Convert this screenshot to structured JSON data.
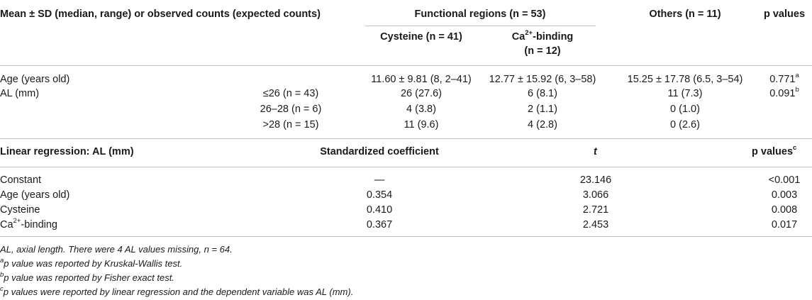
{
  "table1": {
    "header_desc": "Mean ± SD (median, range) or observed counts (expected counts)",
    "header_functional": "Functional regions (n = 53)",
    "header_cysteine": "Cysteine (n = 41)",
    "header_ca_pre": "Ca",
    "header_ca_sup": "2+",
    "header_ca_post": "-binding",
    "header_ca_n": "(n = 12)",
    "header_others": "Others (n = 11)",
    "header_p": "p values",
    "rows": [
      {
        "label": "Age (years old)",
        "sub": "",
        "cys": "11.60 ± 9.81 (8, 2–41)",
        "ca": "12.77 ± 15.92 (6, 3–58)",
        "others": "15.25 ± 17.78 (6.5, 3–54)",
        "p": "0.771",
        "p_sup": "a"
      },
      {
        "label": "AL (mm)",
        "sub": "≤26 (n = 43)",
        "cys": "26 (27.6)",
        "ca": "6 (8.1)",
        "others": "11 (7.3)",
        "p": "0.091",
        "p_sup": "b"
      },
      {
        "label": "",
        "sub": "26–28 (n = 6)",
        "cys": "4 (3.8)",
        "ca": "2 (1.1)",
        "others": "0 (1.0)",
        "p": "",
        "p_sup": ""
      },
      {
        "label": "",
        "sub": ">28 (n = 15)",
        "cys": "11 (9.6)",
        "ca": "4 (2.8)",
        "others": "0 (2.6)",
        "p": "",
        "p_sup": ""
      }
    ]
  },
  "table2": {
    "header_desc": "Linear regression: AL (mm)",
    "header_coef": "Standardized coefficient",
    "header_t": "t",
    "header_p": "p values",
    "header_p_sup": "c",
    "rows": [
      {
        "label": "Constant",
        "coef": "—",
        "t": "23.146",
        "p": "<0.001"
      },
      {
        "label": "Age (years old)",
        "coef": "0.354",
        "t": "3.066",
        "p": "0.003"
      },
      {
        "label": "Cysteine",
        "coef": "0.410",
        "t": "2.721",
        "p": "0.008"
      },
      {
        "label_pre": "Ca",
        "label_sup": "2+",
        "label_post": "-binding",
        "coef": "0.367",
        "t": "2.453",
        "p": "0.017"
      }
    ]
  },
  "footnotes": {
    "abbrev": "AL, axial length. There were 4 AL values missing, n = 64.",
    "a_sup": "a",
    "a_text": "p value was reported by Kruskal-Wallis test.",
    "b_sup": "b",
    "b_text": "p value was reported by Fisher exact test.",
    "c_sup": "c",
    "c_text": "p values were reported by linear regression and the dependent variable was AL (mm)."
  }
}
